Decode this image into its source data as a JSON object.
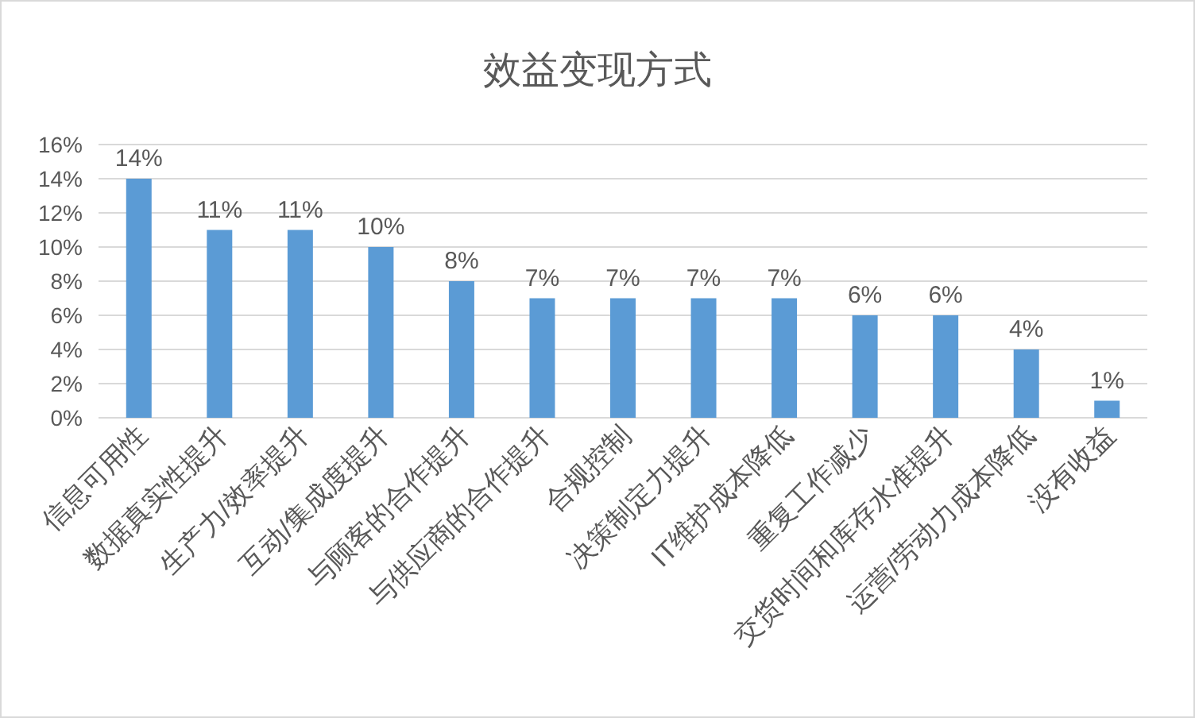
{
  "chart_data": {
    "type": "bar",
    "title": "效益变现方式",
    "categories": [
      "信息可用性",
      "数据真实性提升",
      "生产力/效率提升",
      "互动/集成度提升",
      "与顾客的合作提升",
      "与供应商的合作提升",
      "合规控制",
      "决策制定力提升",
      "IT维护成本降低",
      "重复工作减少",
      "交货时间和库存水准提升",
      "运营/劳动力成本降低",
      "没有收益"
    ],
    "values": [
      14,
      11,
      11,
      10,
      8,
      7,
      7,
      7,
      7,
      6,
      6,
      4,
      1
    ],
    "value_labels": [
      "14%",
      "11%",
      "11%",
      "10%",
      "8%",
      "7%",
      "7%",
      "7%",
      "7%",
      "6%",
      "6%",
      "4%",
      "1%"
    ],
    "color": "#5b9bd5",
    "ylim": [
      0,
      16
    ],
    "yticks": [
      {
        "value": 0,
        "label": "0%"
      },
      {
        "value": 2,
        "label": "2%"
      },
      {
        "value": 4,
        "label": "4%"
      },
      {
        "value": 6,
        "label": "6%"
      },
      {
        "value": 8,
        "label": "8%"
      },
      {
        "value": 10,
        "label": "10%"
      },
      {
        "value": 12,
        "label": "12%"
      },
      {
        "value": 14,
        "label": "14%"
      },
      {
        "value": 16,
        "label": "16%"
      }
    ],
    "grid": "y"
  }
}
